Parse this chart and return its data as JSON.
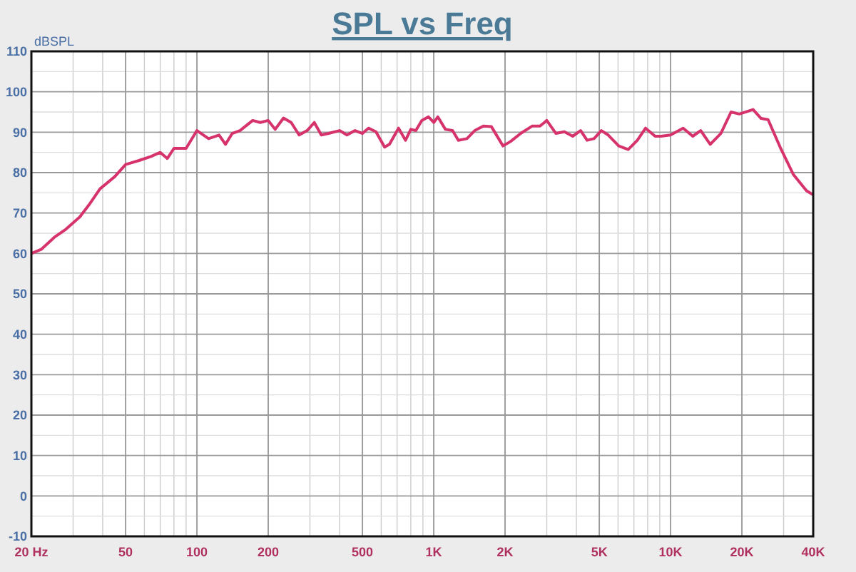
{
  "chart_data": {
    "type": "line",
    "title": "SPL vs Freq",
    "ylabel": "dBSPL",
    "log": "x",
    "grid": true,
    "marker": "none",
    "line_style": "solid",
    "xlim": [
      20,
      40000
    ],
    "xticks": [
      {
        "value": 20,
        "label": "20 Hz"
      },
      50,
      100,
      200,
      500,
      {
        "value": 1000,
        "label": "1K"
      },
      {
        "value": 2000,
        "label": "2K"
      },
      {
        "value": 5000,
        "label": "5K"
      },
      {
        "value": 10000,
        "label": "10K"
      },
      {
        "value": 20000,
        "label": "20K"
      },
      {
        "value": 40000,
        "label": "40K"
      }
    ],
    "ylim": [
      -10,
      110
    ],
    "yticks": [
      -10,
      0,
      10,
      20,
      30,
      40,
      50,
      60,
      70,
      80,
      90,
      100,
      110
    ],
    "series": [
      {
        "color": "#d6336c",
        "x": [
          20,
          22,
          25,
          28,
          32,
          35,
          39,
          45,
          50,
          57,
          64,
          70,
          75,
          80,
          90,
          100,
          112,
          124,
          132,
          141,
          152,
          172,
          185,
          200,
          214,
          232,
          250,
          270,
          292,
          313,
          335,
          360,
          400,
          430,
          465,
          500,
          530,
          570,
          620,
          650,
          710,
          760,
          800,
          840,
          890,
          950,
          1000,
          1040,
          1120,
          1200,
          1270,
          1380,
          1490,
          1620,
          1750,
          1960,
          2110,
          2330,
          2600,
          2810,
          3000,
          3280,
          3560,
          3860,
          4170,
          4440,
          4750,
          5100,
          5450,
          6040,
          6620,
          7240,
          7840,
          8600,
          9100,
          9990,
          11300,
          12400,
          13400,
          14700,
          16300,
          18000,
          19500,
          22300,
          24100,
          25800,
          29000,
          33000,
          37500,
          40000
        ],
        "values": [
          60,
          61,
          64,
          66,
          69,
          72,
          76,
          79,
          82,
          83,
          84,
          85,
          83.5,
          86,
          86,
          90.4,
          88.4,
          89.3,
          87,
          89.7,
          90.4,
          92.9,
          92.4,
          92.9,
          90.7,
          93.5,
          92.4,
          89.3,
          90.4,
          92.4,
          89.3,
          89.7,
          90.4,
          89.3,
          90.4,
          89.7,
          91,
          90.1,
          86.3,
          87,
          91,
          88,
          90.7,
          90.4,
          92.9,
          93.8,
          92.4,
          93.8,
          90.7,
          90.4,
          88,
          88.4,
          90.4,
          91.5,
          91.4,
          86.6,
          87.7,
          89.7,
          91.5,
          91.5,
          92.9,
          89.7,
          90.1,
          89,
          90.4,
          88,
          88.4,
          90.4,
          89.3,
          86.6,
          85.7,
          88,
          91,
          89,
          89,
          89.3,
          91,
          89,
          90.4,
          87,
          89.7,
          95,
          94.5,
          95.6,
          93.4,
          93.1,
          86.3,
          79.5,
          75.5,
          74.5
        ]
      }
    ]
  }
}
